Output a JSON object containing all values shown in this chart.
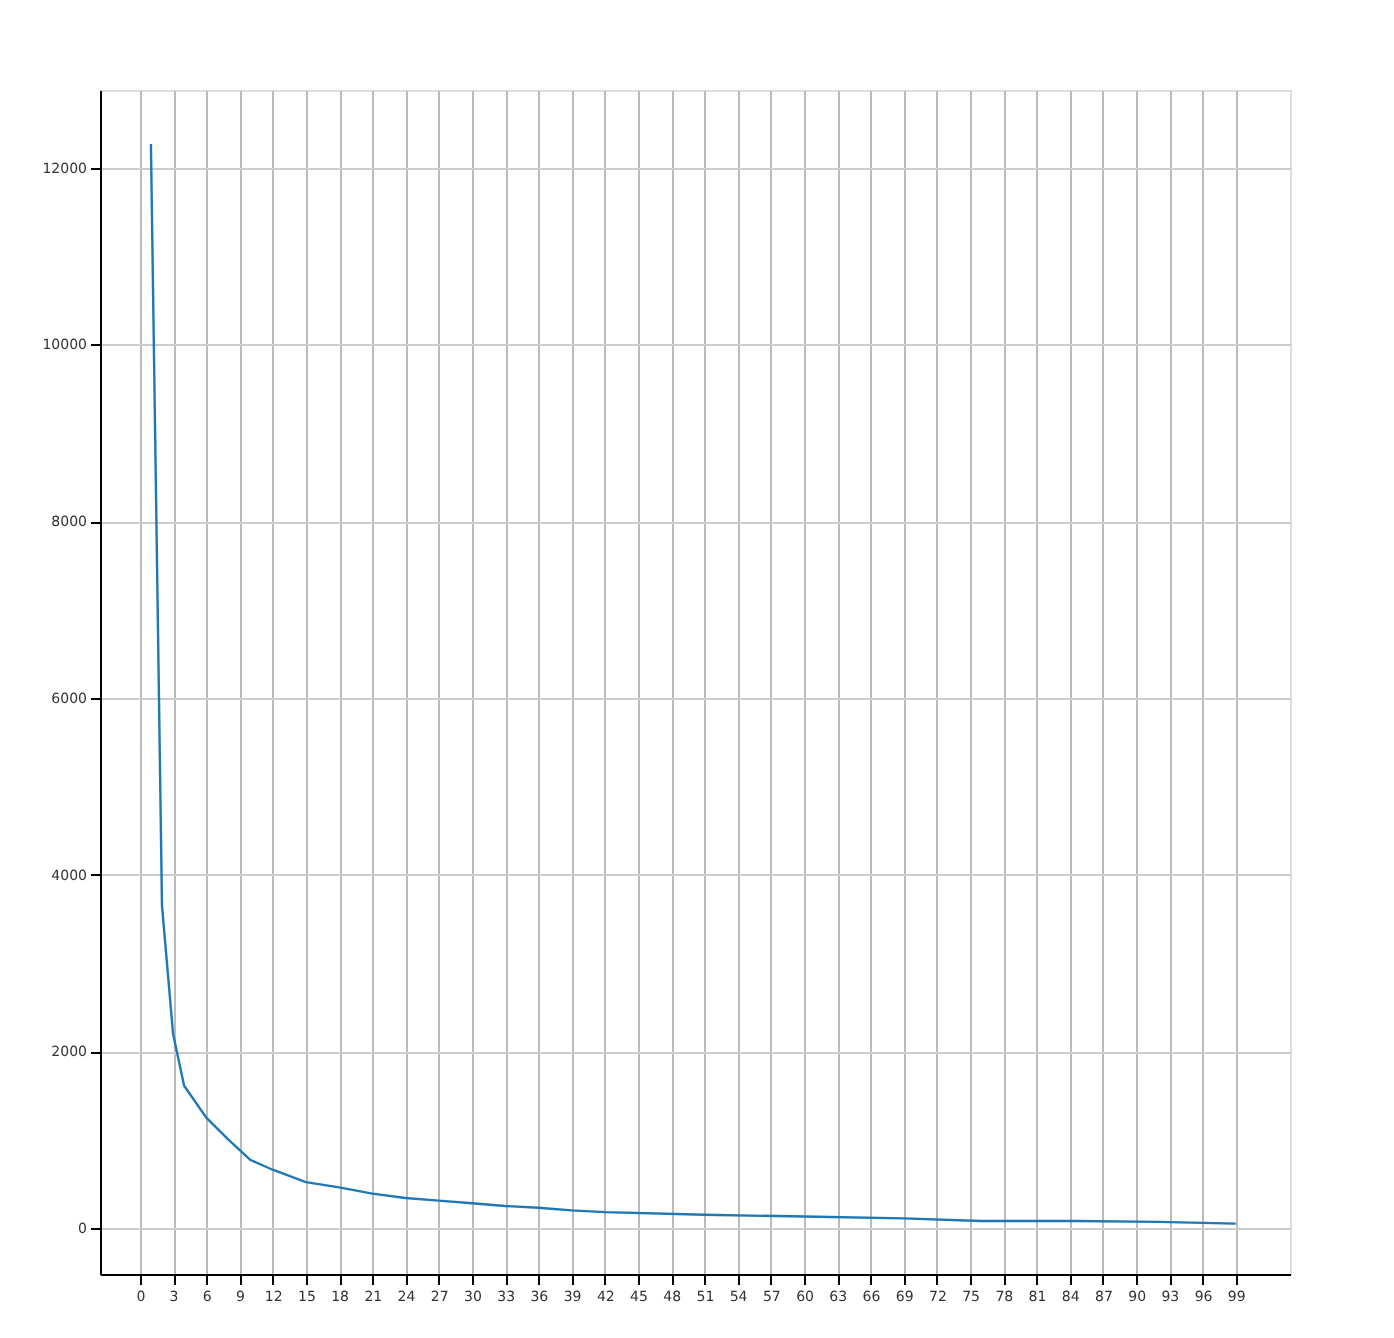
{
  "chart_data": {
    "type": "line",
    "x": [
      1,
      2,
      3,
      4,
      6,
      8,
      10,
      12,
      15,
      18,
      21,
      24,
      27,
      30,
      33,
      36,
      39,
      42,
      51,
      60,
      69,
      76,
      84.5,
      92,
      99
    ],
    "series": [
      {
        "color": "#1f77b4",
        "values": [
          12270,
          3650,
          2200,
          1610,
          1250,
          1000,
          770,
          660,
          520,
          460,
          390,
          340,
          310,
          280,
          250,
          230,
          200,
          180,
          150,
          130,
          110,
          80,
          80,
          70,
          50
        ]
      }
    ],
    "xlim": [
      -3.6,
      103.9
    ],
    "ylim": [
      -520,
      12880
    ],
    "xticks": [
      0,
      3,
      6,
      9,
      12,
      15,
      18,
      21,
      24,
      27,
      30,
      33,
      36,
      39,
      42,
      45,
      48,
      51,
      54,
      57,
      60,
      63,
      66,
      69,
      72,
      75,
      78,
      81,
      84,
      87,
      90,
      93,
      96,
      99
    ],
    "yticks": [
      0,
      2000,
      4000,
      6000,
      8000,
      10000,
      12000
    ],
    "grid": true,
    "line_style": "solid",
    "marker": "none"
  }
}
